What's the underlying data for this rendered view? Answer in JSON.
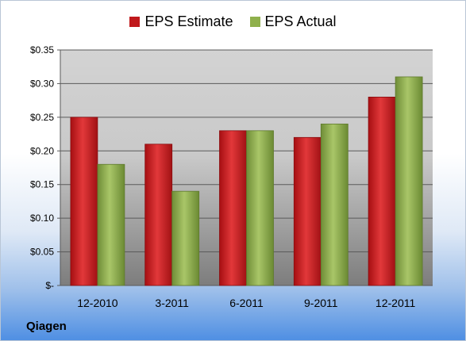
{
  "company": "Qiagen",
  "chart_data": {
    "type": "bar",
    "categories": [
      "12-2010",
      "3-2011",
      "6-2011",
      "9-2011",
      "12-2011"
    ],
    "series": [
      {
        "name": "EPS Estimate",
        "values": [
          0.25,
          0.21,
          0.23,
          0.22,
          0.28
        ],
        "color": "#c0191c"
      },
      {
        "name": "EPS Actual",
        "values": [
          0.18,
          0.14,
          0.23,
          0.24,
          0.31
        ],
        "color": "#8fb04c"
      }
    ],
    "ylim": [
      0,
      0.35
    ],
    "yticks": [
      {
        "value": 0.35,
        "label": "$0.35"
      },
      {
        "value": 0.3,
        "label": "$0.30"
      },
      {
        "value": 0.25,
        "label": "$0.25"
      },
      {
        "value": 0.2,
        "label": "$0.20"
      },
      {
        "value": 0.15,
        "label": "$0.15"
      },
      {
        "value": 0.1,
        "label": "$0.10"
      },
      {
        "value": 0.05,
        "label": "$0.05"
      },
      {
        "value": 0,
        "label": "$-"
      }
    ],
    "grid": true,
    "legend_position": "top"
  }
}
